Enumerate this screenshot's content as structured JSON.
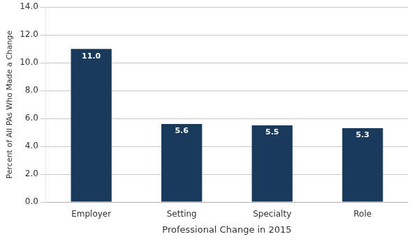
{
  "chart_data": {
    "type": "bar",
    "categories": [
      "Employer",
      "Setting",
      "Specialty",
      "Role"
    ],
    "values": [
      11.0,
      5.6,
      5.5,
      5.3
    ],
    "value_labels": [
      "11.0",
      "5.6",
      "5.5",
      "5.3"
    ],
    "data_labels": true,
    "color": "#1a3a5c",
    "xlabel": "Professional Change in 2015",
    "ylabel": "Percent of All PAs Who Made a Change",
    "ylim": [
      0,
      14.0
    ],
    "yticks": [
      {
        "value": 0,
        "label": "0.0"
      },
      {
        "value": 2,
        "label": "2.0"
      },
      {
        "value": 4,
        "label": "4.0"
      },
      {
        "value": 6,
        "label": "6.0"
      },
      {
        "value": 8,
        "label": "8.0"
      },
      {
        "value": 10,
        "label": "10.0"
      },
      {
        "value": 12,
        "label": "12.0"
      },
      {
        "value": 14,
        "label": "14.0"
      }
    ],
    "grid": true
  }
}
